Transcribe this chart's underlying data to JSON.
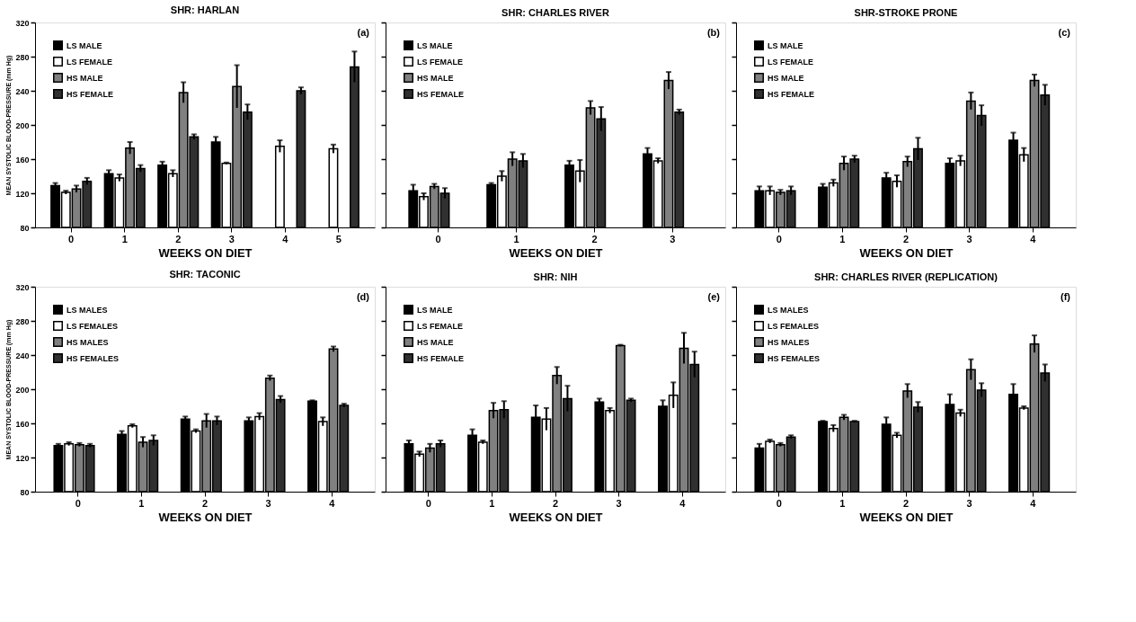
{
  "chart_data": [
    {
      "type": "bar",
      "title": "SHR: HARLAN",
      "xlabel": "WEEKS ON DIET",
      "ylabel": "MEAN SYSTOLIC BLOOD-PRESSURE (mm Hg)",
      "annotations": [
        "(a)"
      ],
      "categories": [
        "0",
        "1",
        "2",
        "3",
        "4",
        "5"
      ],
      "ylim": [
        80,
        320
      ],
      "yticks": [
        80,
        120,
        160,
        200,
        240,
        280,
        320
      ],
      "grid": false,
      "legend": "top left",
      "series": [
        {
          "name": "LS MALE",
          "color": "#000000",
          "values": [
            129,
            143,
            153,
            180,
            null,
            null
          ],
          "errors": [
            3,
            4,
            4,
            6,
            null,
            null
          ]
        },
        {
          "name": "LS FEMALE",
          "color": "#ffffff",
          "values": [
            121,
            138,
            143,
            155,
            175,
            172
          ],
          "errors": [
            2,
            4,
            4,
            1,
            7,
            5
          ]
        },
        {
          "name": "HS MALE",
          "color": "#808080",
          "values": [
            125,
            173,
            238,
            245,
            null,
            null
          ],
          "errors": [
            4,
            7,
            12,
            25,
            null,
            null
          ]
        },
        {
          "name": "HS FEMALE",
          "color": "#303030",
          "values": [
            134,
            149,
            186,
            215,
            240,
            268
          ],
          "errors": [
            4,
            4,
            3,
            9,
            4,
            18
          ]
        }
      ]
    },
    {
      "type": "bar",
      "title": "SHR: CHARLES RIVER",
      "xlabel": "WEEKS ON DIET",
      "annotations": [
        "(b)"
      ],
      "categories": [
        "0",
        "1",
        "2",
        "3"
      ],
      "ylim": [
        80,
        320
      ],
      "yticks": [
        80,
        120,
        160,
        200,
        240,
        280,
        320
      ],
      "tick_labels": "x",
      "grid": false,
      "legend": "top left",
      "series": [
        {
          "name": "LS MALE",
          "color": "#000000",
          "values": [
            123,
            130,
            153,
            166
          ],
          "errors": [
            7,
            2,
            5,
            7
          ]
        },
        {
          "name": "LS FEMALE",
          "color": "#ffffff",
          "values": [
            116,
            140,
            146,
            158
          ],
          "errors": [
            4,
            6,
            13,
            3
          ]
        },
        {
          "name": "HS MALE",
          "color": "#808080",
          "values": [
            128,
            160,
            220,
            252
          ],
          "errors": [
            3,
            8,
            8,
            10
          ]
        },
        {
          "name": "HS FEMALE",
          "color": "#303030",
          "values": [
            120,
            158,
            207,
            215
          ],
          "errors": [
            6,
            8,
            14,
            3
          ]
        }
      ]
    },
    {
      "type": "bar",
      "title": "SHR-STROKE PRONE",
      "xlabel": "WEEKS ON DIET",
      "annotations": [
        "(c)"
      ],
      "categories": [
        "0",
        "1",
        "2",
        "3",
        "4"
      ],
      "ylim": [
        80,
        320
      ],
      "yticks": [
        80,
        120,
        160,
        200,
        240,
        280,
        320
      ],
      "tick_labels": "x",
      "grid": false,
      "legend": "top left",
      "series": [
        {
          "name": "LS MALE",
          "color": "#000000",
          "values": [
            123,
            127,
            138,
            155,
            182
          ],
          "errors": [
            5,
            4,
            6,
            6,
            9
          ]
        },
        {
          "name": "LS FEMALE",
          "color": "#ffffff",
          "values": [
            123,
            132,
            134,
            158,
            165
          ],
          "errors": [
            5,
            4,
            7,
            6,
            8
          ]
        },
        {
          "name": "HS MALE",
          "color": "#808080",
          "values": [
            121,
            155,
            157,
            228,
            252
          ],
          "errors": [
            3,
            8,
            6,
            10,
            7
          ]
        },
        {
          "name": "HS FEMALE",
          "color": "#303030",
          "values": [
            123,
            160,
            172,
            211,
            235
          ],
          "errors": [
            5,
            4,
            13,
            12,
            12
          ]
        }
      ]
    },
    {
      "type": "bar",
      "title": "SHR: TACONIC",
      "xlabel": "WEEKS ON DIET",
      "ylabel": "MEAN SYSTOLIC BLOOD-PRESSURE (mm Hg)",
      "annotations": [
        "(d)"
      ],
      "categories": [
        "0",
        "1",
        "2",
        "3",
        "4"
      ],
      "ylim": [
        80,
        320
      ],
      "yticks": [
        80,
        120,
        160,
        200,
        240,
        280,
        320
      ],
      "grid": false,
      "legend": "top left",
      "series": [
        {
          "name": "LS MALES",
          "color": "#000000",
          "values": [
            134,
            147,
            165,
            163,
            186
          ],
          "errors": [
            2,
            4,
            3,
            4,
            1
          ]
        },
        {
          "name": "LS FEMALES",
          "color": "#ffffff",
          "values": [
            136,
            157,
            151,
            168,
            162
          ],
          "errors": [
            2,
            2,
            2,
            4,
            5
          ]
        },
        {
          "name": "HS MALES",
          "color": "#808080",
          "values": [
            135,
            138,
            163,
            213,
            247
          ],
          "errors": [
            2,
            6,
            8,
            3,
            3
          ]
        },
        {
          "name": "HS FEMALES",
          "color": "#303030",
          "values": [
            134,
            140,
            163,
            188,
            181
          ],
          "errors": [
            2,
            6,
            5,
            4,
            2
          ]
        }
      ]
    },
    {
      "type": "bar",
      "title": "SHR: NIH",
      "xlabel": "WEEKS ON DIET",
      "annotations": [
        "(e)"
      ],
      "categories": [
        "0",
        "1",
        "2",
        "3",
        "4"
      ],
      "ylim": [
        80,
        320
      ],
      "yticks": [
        80,
        120,
        160,
        200,
        240,
        280,
        320
      ],
      "tick_labels": "x",
      "grid": false,
      "legend": "top left",
      "series": [
        {
          "name": "LS MALE",
          "color": "#000000",
          "values": [
            136,
            146,
            167,
            185,
            180
          ],
          "errors": [
            4,
            7,
            14,
            4,
            7
          ]
        },
        {
          "name": "LS FEMALE",
          "color": "#ffffff",
          "values": [
            124,
            138,
            165,
            175,
            193
          ],
          "errors": [
            3,
            2,
            13,
            3,
            15
          ]
        },
        {
          "name": "HS MALE",
          "color": "#808080",
          "values": [
            131,
            175,
            216,
            251,
            248
          ],
          "errors": [
            5,
            9,
            10,
            1,
            18
          ]
        },
        {
          "name": "HS FEMALE",
          "color": "#303030",
          "values": [
            136,
            176,
            189,
            187,
            229
          ],
          "errors": [
            4,
            10,
            15,
            2,
            15
          ]
        }
      ]
    },
    {
      "type": "bar",
      "title": "SHR: CHARLES RIVER (REPLICATION)",
      "xlabel": "WEEKS ON DIET",
      "annotations": [
        "(f)"
      ],
      "categories": [
        "0",
        "1",
        "2",
        "3",
        "4"
      ],
      "ylim": [
        80,
        320
      ],
      "yticks": [
        80,
        120,
        160,
        200,
        240,
        280,
        320
      ],
      "tick_labels": "x",
      "grid": false,
      "legend": "top left",
      "series": [
        {
          "name": "LS MALES",
          "color": "#000000",
          "values": [
            131,
            162,
            159,
            182,
            194
          ],
          "errors": [
            5,
            1,
            8,
            12,
            12
          ]
        },
        {
          "name": "LS FEMALES",
          "color": "#ffffff",
          "values": [
            139,
            154,
            146,
            172,
            178
          ],
          "errors": [
            2,
            4,
            3,
            4,
            2
          ]
        },
        {
          "name": "HS MALES",
          "color": "#808080",
          "values": [
            135,
            167,
            198,
            223,
            253
          ],
          "errors": [
            2,
            3,
            8,
            12,
            10
          ]
        },
        {
          "name": "HS FEMALES",
          "color": "#303030",
          "values": [
            144,
            162,
            179,
            199,
            219
          ],
          "errors": [
            2,
            1,
            6,
            8,
            10
          ]
        }
      ]
    }
  ]
}
